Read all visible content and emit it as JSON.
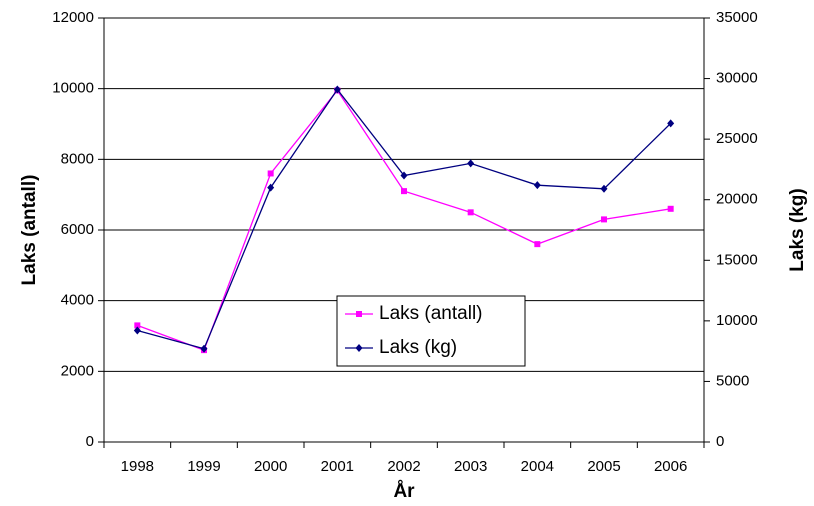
{
  "chart_data": {
    "type": "line",
    "x_label": "År",
    "y_label": "Laks (antall)",
    "y2_label": "Laks (kg)",
    "categories": [
      "1998",
      "1999",
      "2000",
      "2001",
      "2002",
      "2003",
      "2004",
      "2005",
      "2006"
    ],
    "series": [
      {
        "name": "Laks (antall)",
        "color": "#ff00ff",
        "values": [
          3300,
          2600,
          7600,
          9950,
          7100,
          6500,
          5600,
          6300,
          6600
        ]
      },
      {
        "name": "Laks (kg)",
        "color": "#000080",
        "axis": "y2",
        "values": [
          9200,
          7700,
          21000,
          29100,
          22000,
          23000,
          21200,
          20900,
          26300
        ]
      }
    ],
    "ylim": [
      0,
      12000
    ],
    "yticks": [
      0,
      2000,
      4000,
      6000,
      8000,
      10000,
      12000
    ],
    "y2lim": [
      0,
      35000
    ],
    "y2ticks": [
      0,
      5000,
      10000,
      15000,
      20000,
      25000,
      30000,
      35000
    ],
    "grid": true,
    "legend": "center"
  }
}
